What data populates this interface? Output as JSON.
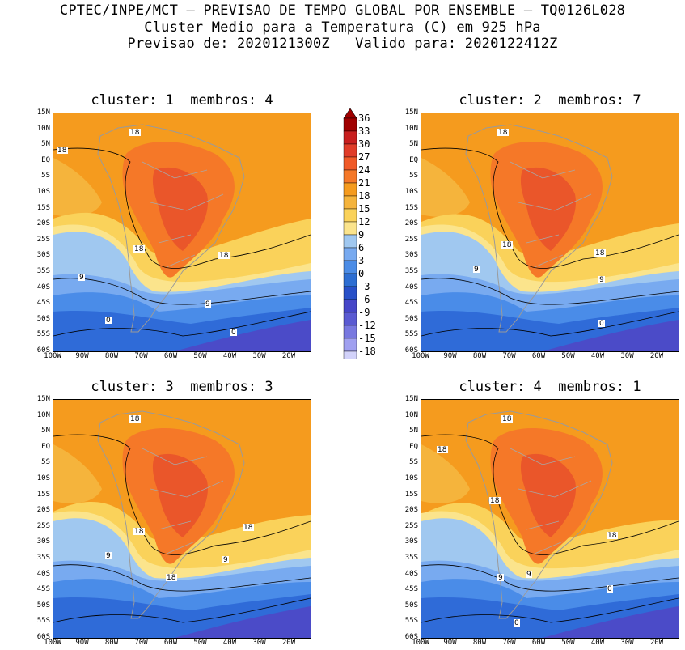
{
  "header": {
    "line1": "CPTEC/INPE/MCT – PREVISAO DE TEMPO GLOBAL POR ENSEMBLE – TQ0126L028",
    "line2": "Cluster Medio para a Temperatura (C) em 925 hPa",
    "line3": "Previsao de: 2020121300Z   Valido para: 2020122412Z"
  },
  "panels": [
    {
      "title": "cluster: 1  membros: 4",
      "contour_labels": [
        "18",
        "18",
        "18",
        "18",
        "9",
        "9",
        "0",
        "0"
      ]
    },
    {
      "title": "cluster: 2  membros: 7",
      "contour_labels": [
        "18",
        "18",
        "18",
        "9",
        "9",
        "0"
      ]
    },
    {
      "title": "cluster: 3  membros: 3",
      "contour_labels": [
        "18",
        "18",
        "18",
        "18",
        "9",
        "9"
      ]
    },
    {
      "title": "cluster: 4  membros: 1",
      "contour_labels": [
        "18",
        "18",
        "18",
        "18",
        "9",
        "9",
        "0",
        "0"
      ]
    }
  ],
  "axes": {
    "lat_ticks": [
      "15N",
      "10N",
      "5N",
      "EQ",
      "5S",
      "10S",
      "15S",
      "20S",
      "25S",
      "30S",
      "35S",
      "40S",
      "45S",
      "50S",
      "55S",
      "60S"
    ],
    "lon_ticks": [
      "100W",
      "90W",
      "80W",
      "70W",
      "60W",
      "50W",
      "40W",
      "30W",
      "20W"
    ]
  },
  "colorbar": {
    "labels": [
      "36",
      "33",
      "30",
      "27",
      "24",
      "21",
      "18",
      "15",
      "12",
      "9",
      "6",
      "3",
      "0",
      "-3",
      "-6",
      "-9",
      "-12",
      "-15",
      "-18"
    ],
    "colors": [
      "#a00000",
      "#c81e1e",
      "#e03c28",
      "#f05a28",
      "#f57828",
      "#f59b1e",
      "#f5b43c",
      "#fad25a",
      "#fbe48c",
      "#a0c8f0",
      "#78aaf0",
      "#4b8ce6",
      "#2d6ed2",
      "#2850c8",
      "#4646c8",
      "#5a5ad2",
      "#7878e0",
      "#a0a0f0",
      "#d2d2fa"
    ]
  }
}
